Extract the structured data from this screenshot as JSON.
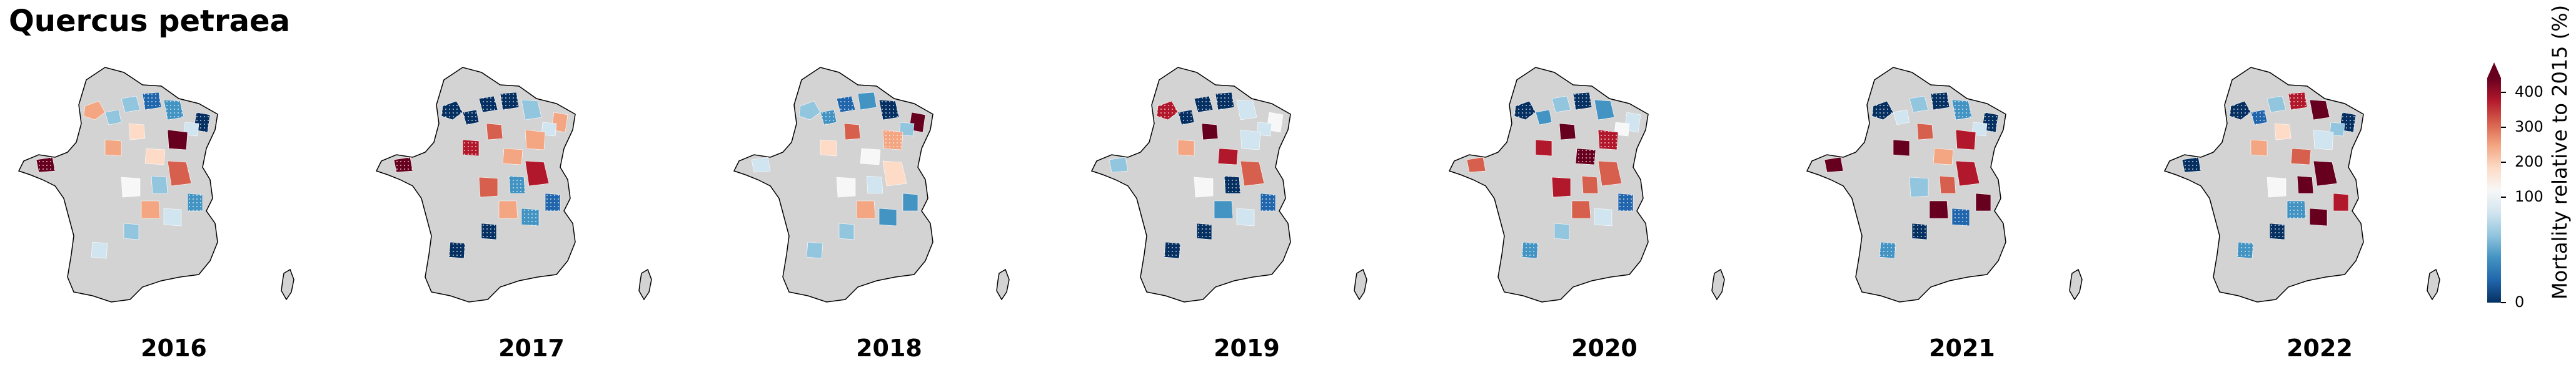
{
  "title": "Quercus petraea",
  "panels": [
    {
      "year": "2016",
      "regions": [
        {
          "id": "nw1",
          "color": "#f4a582",
          "hatch": false
        },
        {
          "id": "nw2",
          "color": "#92c5de",
          "hatch": false
        },
        {
          "id": "bret",
          "color": "#67001f",
          "hatch": true
        },
        {
          "id": "n1",
          "color": "#92c5de",
          "hatch": false
        },
        {
          "id": "n2",
          "color": "#2166ac",
          "hatch": true
        },
        {
          "id": "n3",
          "color": "#4393c3",
          "hatch": true
        },
        {
          "id": "ne1",
          "color": "#053061",
          "hatch": true
        },
        {
          "id": "ne2",
          "color": "#d1e5f0",
          "hatch": false
        },
        {
          "id": "c1",
          "color": "#fddbc7",
          "hatch": false
        },
        {
          "id": "c2",
          "color": "#67001f",
          "hatch": false
        },
        {
          "id": "c3",
          "color": "#f4a582",
          "hatch": false
        },
        {
          "id": "c4",
          "color": "#fddbc7",
          "hatch": false
        },
        {
          "id": "c5",
          "color": "#d6604d",
          "hatch": false
        },
        {
          "id": "c6",
          "color": "#92c5de",
          "hatch": false
        },
        {
          "id": "c7",
          "color": "#4393c3",
          "hatch": true
        },
        {
          "id": "s1",
          "color": "#f7f7f7",
          "hatch": false
        },
        {
          "id": "s2",
          "color": "#f4a582",
          "hatch": false
        },
        {
          "id": "s3",
          "color": "#d1e5f0",
          "hatch": false
        },
        {
          "id": "s4",
          "color": "#92c5de",
          "hatch": false
        },
        {
          "id": "sw",
          "color": "#d1e5f0",
          "hatch": false
        }
      ]
    },
    {
      "year": "2017",
      "regions": [
        {
          "id": "nw1",
          "color": "#053061",
          "hatch": true
        },
        {
          "id": "nw2",
          "color": "#053061",
          "hatch": true
        },
        {
          "id": "bret",
          "color": "#67001f",
          "hatch": true
        },
        {
          "id": "n1",
          "color": "#053061",
          "hatch": true
        },
        {
          "id": "n2",
          "color": "#053061",
          "hatch": true
        },
        {
          "id": "n3",
          "color": "#92c5de",
          "hatch": false
        },
        {
          "id": "ne1",
          "color": "#f4a582",
          "hatch": false
        },
        {
          "id": "ne2",
          "color": "#d1e5f0",
          "hatch": false
        },
        {
          "id": "c1",
          "color": "#d6604d",
          "hatch": false
        },
        {
          "id": "c2",
          "color": "#f4a582",
          "hatch": false
        },
        {
          "id": "c3",
          "color": "#b2182b",
          "hatch": true
        },
        {
          "id": "c4",
          "color": "#f4a582",
          "hatch": false
        },
        {
          "id": "c5",
          "color": "#b2182b",
          "hatch": false
        },
        {
          "id": "c6",
          "color": "#4393c3",
          "hatch": true
        },
        {
          "id": "c7",
          "color": "#2166ac",
          "hatch": true
        },
        {
          "id": "s1",
          "color": "#d6604d",
          "hatch": false
        },
        {
          "id": "s2",
          "color": "#f4a582",
          "hatch": false
        },
        {
          "id": "s3",
          "color": "#4393c3",
          "hatch": true
        },
        {
          "id": "s4",
          "color": "#053061",
          "hatch": true
        },
        {
          "id": "sw",
          "color": "#053061",
          "hatch": true
        }
      ]
    },
    {
      "year": "2018",
      "regions": [
        {
          "id": "nw1",
          "color": "#92c5de",
          "hatch": false
        },
        {
          "id": "nw2",
          "color": "#4393c3",
          "hatch": true
        },
        {
          "id": "bret",
          "color": "#d1e5f0",
          "hatch": false
        },
        {
          "id": "n1",
          "color": "#2166ac",
          "hatch": true
        },
        {
          "id": "n2",
          "color": "#4393c3",
          "hatch": false
        },
        {
          "id": "n3",
          "color": "#053061",
          "hatch": true
        },
        {
          "id": "ne1",
          "color": "#67001f",
          "hatch": false
        },
        {
          "id": "ne2",
          "color": "#92c5de",
          "hatch": false
        },
        {
          "id": "c1",
          "color": "#d6604d",
          "hatch": false
        },
        {
          "id": "c2",
          "color": "#f4a582",
          "hatch": true
        },
        {
          "id": "c3",
          "color": "#fddbc7",
          "hatch": false
        },
        {
          "id": "c4",
          "color": "#f7f7f7",
          "hatch": false
        },
        {
          "id": "c5",
          "color": "#fddbc7",
          "hatch": false
        },
        {
          "id": "c6",
          "color": "#d1e5f0",
          "hatch": false
        },
        {
          "id": "c7",
          "color": "#4393c3",
          "hatch": false
        },
        {
          "id": "s1",
          "color": "#f7f7f7",
          "hatch": false
        },
        {
          "id": "s2",
          "color": "#f4a582",
          "hatch": false
        },
        {
          "id": "s3",
          "color": "#4393c3",
          "hatch": false
        },
        {
          "id": "s4",
          "color": "#92c5de",
          "hatch": false
        },
        {
          "id": "sw",
          "color": "#92c5de",
          "hatch": false
        }
      ]
    },
    {
      "year": "2019",
      "regions": [
        {
          "id": "nw1",
          "color": "#b2182b",
          "hatch": true
        },
        {
          "id": "nw2",
          "color": "#053061",
          "hatch": true
        },
        {
          "id": "bret",
          "color": "#92c5de",
          "hatch": false
        },
        {
          "id": "n1",
          "color": "#053061",
          "hatch": true
        },
        {
          "id": "n2",
          "color": "#053061",
          "hatch": true
        },
        {
          "id": "n3",
          "color": "#d1e5f0",
          "hatch": false
        },
        {
          "id": "ne1",
          "color": "#f7f7f7",
          "hatch": false
        },
        {
          "id": "ne2",
          "color": "#d1e5f0",
          "hatch": false
        },
        {
          "id": "c1",
          "color": "#67001f",
          "hatch": false
        },
        {
          "id": "c2",
          "color": "#d1e5f0",
          "hatch": false
        },
        {
          "id": "c3",
          "color": "#f4a582",
          "hatch": false
        },
        {
          "id": "c4",
          "color": "#b2182b",
          "hatch": false
        },
        {
          "id": "c5",
          "color": "#d6604d",
          "hatch": false
        },
        {
          "id": "c6",
          "color": "#053061",
          "hatch": true
        },
        {
          "id": "c7",
          "color": "#2166ac",
          "hatch": true
        },
        {
          "id": "s1",
          "color": "#f7f7f7",
          "hatch": false
        },
        {
          "id": "s2",
          "color": "#4393c3",
          "hatch": false
        },
        {
          "id": "s3",
          "color": "#d1e5f0",
          "hatch": false
        },
        {
          "id": "s4",
          "color": "#053061",
          "hatch": true
        },
        {
          "id": "sw",
          "color": "#053061",
          "hatch": true
        }
      ]
    },
    {
      "year": "2020",
      "regions": [
        {
          "id": "nw1",
          "color": "#053061",
          "hatch": true
        },
        {
          "id": "nw2",
          "color": "#4393c3",
          "hatch": false
        },
        {
          "id": "bret",
          "color": "#d6604d",
          "hatch": false
        },
        {
          "id": "n1",
          "color": "#92c5de",
          "hatch": false
        },
        {
          "id": "n2",
          "color": "#053061",
          "hatch": true
        },
        {
          "id": "n3",
          "color": "#4393c3",
          "hatch": false
        },
        {
          "id": "ne1",
          "color": "#d1e5f0",
          "hatch": false
        },
        {
          "id": "ne2",
          "color": "#f7f7f7",
          "hatch": false
        },
        {
          "id": "c1",
          "color": "#67001f",
          "hatch": false
        },
        {
          "id": "c2",
          "color": "#b2182b",
          "hatch": true
        },
        {
          "id": "c3",
          "color": "#b2182b",
          "hatch": false
        },
        {
          "id": "c4",
          "color": "#67001f",
          "hatch": true
        },
        {
          "id": "c5",
          "color": "#d6604d",
          "hatch": false
        },
        {
          "id": "c6",
          "color": "#d6604d",
          "hatch": false
        },
        {
          "id": "c7",
          "color": "#2166ac",
          "hatch": true
        },
        {
          "id": "s1",
          "color": "#b2182b",
          "hatch": false
        },
        {
          "id": "s2",
          "color": "#d6604d",
          "hatch": false
        },
        {
          "id": "s3",
          "color": "#d1e5f0",
          "hatch": false
        },
        {
          "id": "s4",
          "color": "#92c5de",
          "hatch": false
        },
        {
          "id": "sw",
          "color": "#4393c3",
          "hatch": true
        }
      ]
    },
    {
      "year": "2021",
      "regions": [
        {
          "id": "nw1",
          "color": "#053061",
          "hatch": true
        },
        {
          "id": "nw2",
          "color": "#d1e5f0",
          "hatch": false
        },
        {
          "id": "bret",
          "color": "#67001f",
          "hatch": false
        },
        {
          "id": "n1",
          "color": "#92c5de",
          "hatch": false
        },
        {
          "id": "n2",
          "color": "#053061",
          "hatch": true
        },
        {
          "id": "n3",
          "color": "#4393c3",
          "hatch": true
        },
        {
          "id": "ne1",
          "color": "#053061",
          "hatch": true
        },
        {
          "id": "ne2",
          "color": "#d1e5f0",
          "hatch": false
        },
        {
          "id": "c1",
          "color": "#d6604d",
          "hatch": false
        },
        {
          "id": "c2",
          "color": "#b2182b",
          "hatch": false
        },
        {
          "id": "c3",
          "color": "#67001f",
          "hatch": false
        },
        {
          "id": "c4",
          "color": "#f4a582",
          "hatch": false
        },
        {
          "id": "c5",
          "color": "#b2182b",
          "hatch": false
        },
        {
          "id": "c6",
          "color": "#d6604d",
          "hatch": false
        },
        {
          "id": "c7",
          "color": "#67001f",
          "hatch": false
        },
        {
          "id": "s1",
          "color": "#92c5de",
          "hatch": false
        },
        {
          "id": "s2",
          "color": "#67001f",
          "hatch": false
        },
        {
          "id": "s3",
          "color": "#2166ac",
          "hatch": true
        },
        {
          "id": "s4",
          "color": "#053061",
          "hatch": true
        },
        {
          "id": "sw",
          "color": "#4393c3",
          "hatch": true
        }
      ]
    },
    {
      "year": "2022",
      "regions": [
        {
          "id": "nw1",
          "color": "#053061",
          "hatch": true
        },
        {
          "id": "nw2",
          "color": "#2166ac",
          "hatch": true
        },
        {
          "id": "bret",
          "color": "#053061",
          "hatch": true
        },
        {
          "id": "n1",
          "color": "#92c5de",
          "hatch": false
        },
        {
          "id": "n2",
          "color": "#b2182b",
          "hatch": true
        },
        {
          "id": "n3",
          "color": "#67001f",
          "hatch": false
        },
        {
          "id": "ne1",
          "color": "#053061",
          "hatch": true
        },
        {
          "id": "ne2",
          "color": "#92c5de",
          "hatch": false
        },
        {
          "id": "c1",
          "color": "#fddbc7",
          "hatch": false
        },
        {
          "id": "c2",
          "color": "#d1e5f0",
          "hatch": false
        },
        {
          "id": "c3",
          "color": "#f4a582",
          "hatch": false
        },
        {
          "id": "c4",
          "color": "#d6604d",
          "hatch": false
        },
        {
          "id": "c5",
          "color": "#67001f",
          "hatch": false
        },
        {
          "id": "c6",
          "color": "#67001f",
          "hatch": false
        },
        {
          "id": "c7",
          "color": "#b2182b",
          "hatch": false
        },
        {
          "id": "s1",
          "color": "#f7f7f7",
          "hatch": false
        },
        {
          "id": "s2",
          "color": "#4393c3",
          "hatch": true
        },
        {
          "id": "s3",
          "color": "#67001f",
          "hatch": false
        },
        {
          "id": "s4",
          "color": "#053061",
          "hatch": true
        },
        {
          "id": "sw",
          "color": "#4393c3",
          "hatch": true
        }
      ]
    }
  ],
  "colorbar": {
    "label": "Mortality relative to 2015 (%)",
    "ticks": [
      "400",
      "300",
      "200",
      "100",
      "0"
    ],
    "colors": [
      "#67001f",
      "#b2182b",
      "#d6604d",
      "#f4a582",
      "#fddbc7",
      "#f7f7f7",
      "#d1e5f0",
      "#92c5de",
      "#4393c3",
      "#2166ac",
      "#053061"
    ]
  },
  "map_colors": {
    "land": "#d3d3d3",
    "outline": "#000000"
  }
}
